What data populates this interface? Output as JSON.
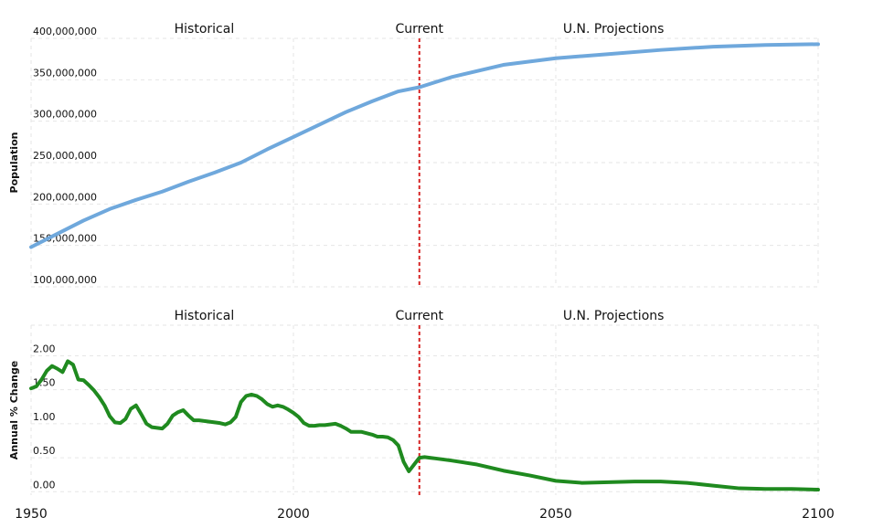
{
  "chart_data": [
    {
      "type": "line",
      "ylabel": "Population",
      "yticks": [
        "100,000,000",
        "150,000,000",
        "200,000,000",
        "250,000,000",
        "300,000,000",
        "350,000,000",
        "400,000,000"
      ],
      "ylim": [
        100000000,
        400000000
      ],
      "xlim": [
        1950,
        2100
      ],
      "section_labels": [
        "Historical",
        "Current",
        "U.N. Projections"
      ],
      "current_year": 2024,
      "color": "#6fa8dc",
      "series": [
        {
          "x": [
            1950,
            1955,
            1960,
            1965,
            1970,
            1975,
            1980,
            1985,
            1990,
            1995,
            2000,
            2005,
            2010,
            2015,
            2020,
            2024,
            2030,
            2040,
            2050,
            2060,
            2070,
            2080,
            2090,
            2100
          ],
          "values": [
            148000000,
            164000000,
            180000000,
            194000000,
            205000000,
            215000000,
            227000000,
            238000000,
            250000000,
            266000000,
            281000000,
            296000000,
            311000000,
            324000000,
            336000000,
            341000000,
            353000000,
            368000000,
            376000000,
            381000000,
            386000000,
            390000000,
            392000000,
            393000000
          ]
        }
      ]
    },
    {
      "type": "line",
      "ylabel": "Annual % Change",
      "yticks": [
        "0.00",
        "0.50",
        "1.00",
        "1.50",
        "2.00"
      ],
      "ylim": [
        -0.05,
        2.45
      ],
      "xlim": [
        1950,
        2100
      ],
      "xticks": [
        "1950",
        "2000",
        "2050",
        "2100"
      ],
      "section_labels": [
        "Historical",
        "Current",
        "U.N. Projections"
      ],
      "current_year": 2024,
      "color": "#1f8a1f",
      "series": [
        {
          "x": [
            1950,
            1951,
            1952,
            1953,
            1954,
            1955,
            1956,
            1957,
            1958,
            1959,
            1960,
            1961,
            1962,
            1963,
            1964,
            1965,
            1966,
            1967,
            1968,
            1969,
            1970,
            1971,
            1972,
            1973,
            1974,
            1975,
            1976,
            1977,
            1978,
            1979,
            1980,
            1981,
            1982,
            1983,
            1984,
            1985,
            1986,
            1987,
            1988,
            1989,
            1990,
            1991,
            1992,
            1993,
            1994,
            1995,
            1996,
            1997,
            1998,
            1999,
            2000,
            2001,
            2002,
            2003,
            2004,
            2005,
            2006,
            2007,
            2008,
            2009,
            2010,
            2011,
            2012,
            2013,
            2014,
            2015,
            2016,
            2017,
            2018,
            2019,
            2020,
            2021,
            2022,
            2023,
            2024,
            2025,
            2026,
            2027,
            2028,
            2029,
            2030,
            2035,
            2040,
            2045,
            2050,
            2055,
            2060,
            2065,
            2070,
            2075,
            2080,
            2085,
            2090,
            2095,
            2100
          ],
          "values": [
            1.52,
            1.55,
            1.65,
            1.78,
            1.85,
            1.81,
            1.76,
            1.92,
            1.87,
            1.65,
            1.64,
            1.57,
            1.49,
            1.39,
            1.27,
            1.11,
            1.02,
            1.01,
            1.07,
            1.22,
            1.27,
            1.14,
            1.0,
            0.95,
            0.94,
            0.93,
            1.0,
            1.12,
            1.17,
            1.2,
            1.12,
            1.05,
            1.05,
            1.04,
            1.03,
            1.02,
            1.01,
            0.99,
            1.02,
            1.1,
            1.32,
            1.41,
            1.43,
            1.41,
            1.36,
            1.29,
            1.25,
            1.27,
            1.25,
            1.21,
            1.16,
            1.1,
            1.01,
            0.97,
            0.97,
            0.98,
            0.98,
            0.99,
            1.0,
            0.97,
            0.93,
            0.88,
            0.88,
            0.88,
            0.86,
            0.84,
            0.81,
            0.81,
            0.8,
            0.76,
            0.68,
            0.44,
            0.3,
            0.4,
            0.5,
            0.51,
            0.5,
            0.49,
            0.48,
            0.47,
            0.46,
            0.4,
            0.31,
            0.24,
            0.16,
            0.13,
            0.14,
            0.15,
            0.15,
            0.13,
            0.09,
            0.05,
            0.04,
            0.04,
            0.03
          ]
        }
      ]
    }
  ]
}
